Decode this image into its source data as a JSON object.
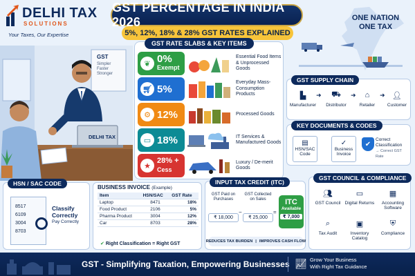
{
  "brand": {
    "name": "DELHI TAX",
    "sub": "SOLUTIONS",
    "tagline": "Your Taxes, Our Expertise"
  },
  "header": {
    "title": "GST PERCENTAGE IN INDIA 2026",
    "subtitle": "5%, 12%, 18% & 28% GST RATES EXPLAINED",
    "nation_line1": "ONE NATION",
    "nation_line2": "ONE TAX"
  },
  "scene": {
    "board_title": "GST",
    "board_line1": "Simpler",
    "board_line2": "Faster",
    "board_line3": "Stronger",
    "laptop_brand": "DELHI TAX",
    "badge": "DELHI TAX"
  },
  "slabs": {
    "heading": "GST RATE SLABS & KEY ITEMS",
    "rows": [
      {
        "rate": "0%",
        "note": "Exempt",
        "desc": "Essential Food Items & Unprocessed Goods",
        "color": "#2e9e45",
        "icon": "leaf-icon"
      },
      {
        "rate": "5%",
        "note": "",
        "desc": "Everyday Mass-Consumption Products",
        "color": "#1f6fd1",
        "icon": "cart-icon"
      },
      {
        "rate": "12%",
        "note": "",
        "desc": "Processed Goods",
        "color": "#f08a14",
        "icon": "gear-icon"
      },
      {
        "rate": "18%",
        "note": "",
        "desc": "IT Services & Manufactured Goods",
        "color": "#0c8b95",
        "icon": "monitor-icon"
      },
      {
        "rate": "28% +",
        "note": "Cess",
        "desc": "Luxury / De-merit Goods",
        "color": "#d73431",
        "icon": "star-icon"
      }
    ]
  },
  "supply_chain": {
    "heading": "GST SUPPLY CHAIN",
    "nodes": [
      "Manufacturer",
      "Distributor",
      "Retailer",
      "Customer"
    ]
  },
  "documents": {
    "heading": "KEY DOCUMENTS & CODES",
    "items": [
      {
        "label": "HSN/SAC Code"
      },
      {
        "label": "Business Invoice"
      }
    ],
    "check_title": "Correct Classification",
    "check_sub": "→ Correct GST Rate"
  },
  "council": {
    "heading": "GST COUNCIL & COMPLIANCE",
    "items": [
      "GST Council",
      "Digital Returns",
      "Accounting Software",
      "Tax Audit",
      "Inventory Catalog",
      "Compliance"
    ]
  },
  "hsn": {
    "heading": "HSN / SAC CODE",
    "codes": [
      "8517",
      "6109",
      "3004",
      "8703"
    ],
    "note1": "Classify",
    "note2": "Correctly",
    "note3": "Pay Correctly"
  },
  "invoice": {
    "heading": "BUSINESS INVOICE",
    "heading_note": "(Example)",
    "columns": [
      "Item",
      "HSN/SAC",
      "GST Rate"
    ],
    "rows": [
      [
        "Laptop",
        "8471",
        "18%"
      ],
      [
        "Food Product",
        "2106",
        "5%"
      ],
      [
        "Pharma Product",
        "3004",
        "12%"
      ],
      [
        "Car",
        "8703",
        "28%"
      ]
    ],
    "footer": "Right Classification = Right GST"
  },
  "itc": {
    "heading": "INPUT TAX CREDIT (ITC)",
    "paid_title": "GST Paid on Purchases",
    "paid_amount": "₹ 18,000",
    "collected_title": "GST Collected on Sales",
    "collected_amount": "₹ 25,000",
    "available_title": "ITC",
    "available_sub": "Available",
    "available_amount": "₹ 7,000",
    "bottom_left": "REDUCES TAX BURDEN",
    "bottom_right": "IMPROVES CASH FLOW"
  },
  "footer": {
    "main": "GST - Simplifying Taxation, Empowering Businesses",
    "side1": "Grow Your Business",
    "side2": "With Right Tax Guidance"
  }
}
